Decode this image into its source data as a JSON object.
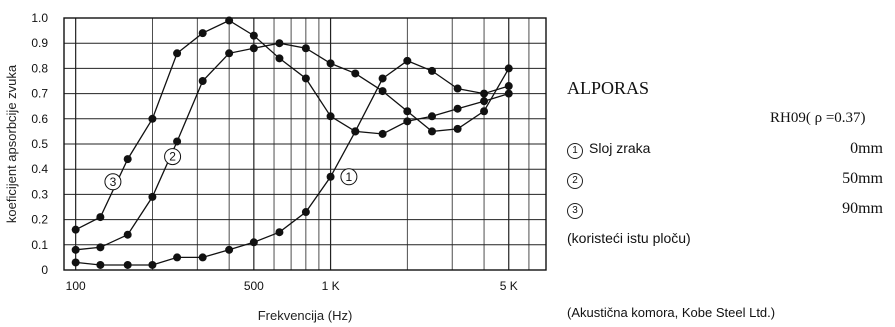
{
  "chart_data": {
    "type": "line",
    "xlabel": "Frekvencija (Hz)",
    "ylabel": "koeficijent apsorbcije zvuka",
    "xscale": "log",
    "xlim": [
      90,
      7000
    ],
    "ylim": [
      0,
      1.0
    ],
    "y_ticks": [
      "0",
      "0.1",
      "0.2",
      "0.3",
      "0.4",
      "0.5",
      "0.6",
      "0.7",
      "0.8",
      "0.9",
      "1.0"
    ],
    "x_tick_labels": [
      {
        "value": 100,
        "label": "100"
      },
      {
        "value": 500,
        "label": "500"
      },
      {
        "value": 1000,
        "label": "1 K"
      },
      {
        "value": 5000,
        "label": "5 K"
      }
    ],
    "grid": true,
    "series": [
      {
        "name": "1",
        "x": [
          100,
          125,
          160,
          200,
          250,
          315,
          400,
          500,
          630,
          800,
          1000,
          1250,
          1600,
          2000,
          2500,
          3150,
          4000,
          5000
        ],
        "y": [
          0.03,
          0.02,
          0.02,
          0.02,
          0.05,
          0.05,
          0.08,
          0.11,
          0.15,
          0.23,
          0.37,
          0.55,
          0.76,
          0.83,
          0.79,
          0.72,
          0.7,
          0.73
        ]
      },
      {
        "name": "2",
        "x": [
          100,
          125,
          160,
          200,
          250,
          315,
          400,
          500,
          630,
          800,
          1000,
          1250,
          1600,
          2000,
          2500,
          3150,
          4000,
          5000
        ],
        "y": [
          0.08,
          0.09,
          0.14,
          0.29,
          0.51,
          0.75,
          0.86,
          0.88,
          0.9,
          0.88,
          0.82,
          0.78,
          0.71,
          0.63,
          0.55,
          0.56,
          0.63,
          0.8
        ]
      },
      {
        "name": "3",
        "x": [
          100,
          125,
          160,
          200,
          250,
          315,
          400,
          500,
          630,
          800,
          1000,
          1250,
          1600,
          2000,
          2500,
          3150,
          4000,
          5000
        ],
        "y": [
          0.16,
          0.21,
          0.44,
          0.6,
          0.86,
          0.94,
          0.99,
          0.93,
          0.84,
          0.76,
          0.61,
          0.55,
          0.54,
          0.59,
          0.61,
          0.64,
          0.67,
          0.7
        ]
      }
    ],
    "series_markers": [
      {
        "label": "1",
        "x": 1180,
        "y": 0.37
      },
      {
        "label": "2",
        "x": 240,
        "y": 0.45
      },
      {
        "label": "3",
        "x": 140,
        "y": 0.35
      }
    ]
  },
  "legend": {
    "title": "ALPORAS",
    "model": "RH09( ρ =0.37)",
    "rows": [
      {
        "num": "1",
        "label": "Sloj zraka",
        "value": "0mm"
      },
      {
        "num": "2",
        "label": "",
        "value": "50mm"
      },
      {
        "num": "3",
        "label": "",
        "value": "90mm"
      }
    ],
    "note": "(koristeći istu ploču)",
    "source": "(Akustična komora, Kobe Steel Ltd.)"
  }
}
